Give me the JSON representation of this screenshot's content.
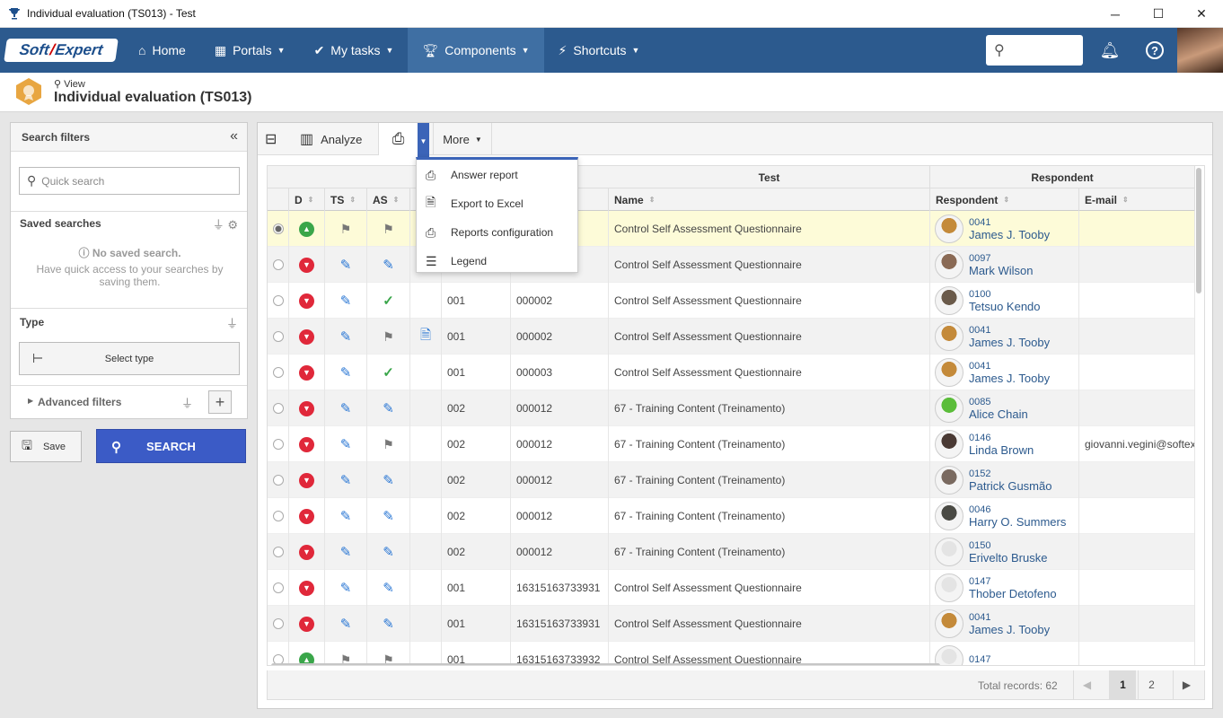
{
  "window": {
    "title": "Individual evaluation (TS013) - Test",
    "controls": [
      "─",
      "☐",
      "✕"
    ]
  },
  "nav": {
    "logo_left": "Soft",
    "logo_right": "Expert",
    "items": [
      {
        "label": "Home",
        "icon": "home-icon"
      },
      {
        "label": "Portals",
        "icon": "grid-icon"
      },
      {
        "label": "My tasks",
        "icon": "check-icon"
      },
      {
        "label": "Components",
        "icon": "trophy-icon"
      },
      {
        "label": "Shortcuts",
        "icon": "bolt-icon"
      }
    ]
  },
  "page": {
    "view_label": "View",
    "title": "Individual evaluation (TS013)"
  },
  "filters": {
    "header": "Search filters",
    "quick_placeholder": "Quick search",
    "saved_title": "Saved searches",
    "no_saved": "No saved search.",
    "no_saved_hint": "Have quick access to your searches by saving them.",
    "type_title": "Type",
    "select_type": "Select type",
    "advanced": "Advanced filters",
    "save": "Save",
    "search": "SEARCH"
  },
  "toolbar": {
    "analyze": "Analyze",
    "more": "More"
  },
  "menu": {
    "items": [
      {
        "label": "Answer report",
        "icon": "printer-icon"
      },
      {
        "label": "Export to Excel",
        "icon": "excel-icon"
      },
      {
        "label": "Reports configuration",
        "icon": "printer-gear-icon"
      },
      {
        "label": "Legend",
        "icon": "list-icon"
      }
    ]
  },
  "grid": {
    "group_test": "Test",
    "group_respondent": "Respondent",
    "columns": {
      "d": "D",
      "ts": "TS",
      "as": "AS",
      "name": "Name",
      "respondent": "Respondent",
      "email": "E-mail"
    },
    "rows": [
      {
        "sel": true,
        "d": "green",
        "ts": "flag",
        "as": "flag",
        "doc": false,
        "c1": "",
        "c2": "",
        "name": "Control Self Assessment Questionnaire",
        "rid": "0041",
        "rname": "James J. Tooby",
        "email": "",
        "av": "#c48a3a"
      },
      {
        "sel": false,
        "d": "red",
        "ts": "edit",
        "as": "edit",
        "doc": false,
        "c1": "",
        "c2": "",
        "name": "Control Self Assessment Questionnaire",
        "rid": "0097",
        "rname": "Mark Wilson",
        "email": "",
        "av": "#8a6a55"
      },
      {
        "sel": false,
        "d": "red",
        "ts": "edit",
        "as": "check",
        "doc": false,
        "c1": "001",
        "c2": "000002",
        "name": "Control Self Assessment Questionnaire",
        "rid": "0100",
        "rname": "Tetsuo Kendo",
        "email": "",
        "av": "#6a5a4a"
      },
      {
        "sel": false,
        "d": "red",
        "ts": "edit",
        "as": "flag",
        "doc": true,
        "c1": "001",
        "c2": "000002",
        "name": "Control Self Assessment Questionnaire",
        "rid": "0041",
        "rname": "James J. Tooby",
        "email": "",
        "av": "#c48a3a"
      },
      {
        "sel": false,
        "d": "red",
        "ts": "edit",
        "as": "check",
        "doc": false,
        "c1": "001",
        "c2": "000003",
        "name": "Control Self Assessment Questionnaire",
        "rid": "0041",
        "rname": "James J. Tooby",
        "email": "",
        "av": "#c48a3a"
      },
      {
        "sel": false,
        "d": "red",
        "ts": "edit",
        "as": "edit",
        "doc": false,
        "c1": "002",
        "c2": "000012",
        "name": "67 - Training Content (Treinamento)",
        "rid": "0085",
        "rname": "Alice Chain",
        "email": "",
        "av": "#5bbd3a"
      },
      {
        "sel": false,
        "d": "red",
        "ts": "edit",
        "as": "flag",
        "doc": false,
        "c1": "002",
        "c2": "000012",
        "name": "67 - Training Content (Treinamento)",
        "rid": "0146",
        "rname": "Linda Brown",
        "email": "giovanni.vegini@softex",
        "av": "#4a3a34"
      },
      {
        "sel": false,
        "d": "red",
        "ts": "edit",
        "as": "edit",
        "doc": false,
        "c1": "002",
        "c2": "000012",
        "name": "67 - Training Content (Treinamento)",
        "rid": "0152",
        "rname": "Patrick Gusmão",
        "email": "",
        "av": "#7a6a60"
      },
      {
        "sel": false,
        "d": "red",
        "ts": "edit",
        "as": "edit",
        "doc": false,
        "c1": "002",
        "c2": "000012",
        "name": "67 - Training Content (Treinamento)",
        "rid": "0046",
        "rname": "Harry O. Summers",
        "email": "",
        "av": "#4a4a44"
      },
      {
        "sel": false,
        "d": "red",
        "ts": "edit",
        "as": "edit",
        "doc": false,
        "c1": "002",
        "c2": "000012",
        "name": "67 - Training Content (Treinamento)",
        "rid": "0150",
        "rname": "Erivelto Bruske",
        "email": "",
        "av": "#e4e4e4"
      },
      {
        "sel": false,
        "d": "red",
        "ts": "edit",
        "as": "edit",
        "doc": false,
        "c1": "001",
        "c2": "16315163733931",
        "name": "Control Self Assessment Questionnaire",
        "rid": "0147",
        "rname": "Thober Detofeno",
        "email": "",
        "av": "#e4e4e4"
      },
      {
        "sel": false,
        "d": "red",
        "ts": "edit",
        "as": "edit",
        "doc": false,
        "c1": "001",
        "c2": "16315163733931",
        "name": "Control Self Assessment Questionnaire",
        "rid": "0041",
        "rname": "James J. Tooby",
        "email": "",
        "av": "#c48a3a"
      },
      {
        "sel": false,
        "d": "green",
        "ts": "flag",
        "as": "flag",
        "doc": false,
        "c1": "001",
        "c2": "16315163733932",
        "name": "Control Self Assessment Questionnaire",
        "rid": "0147",
        "rname": "",
        "email": "",
        "av": "#e4e4e4"
      }
    ]
  },
  "pagination": {
    "total": "Total records: 62",
    "pages": [
      "1",
      "2"
    ],
    "prev": "◀",
    "next": "▶"
  }
}
